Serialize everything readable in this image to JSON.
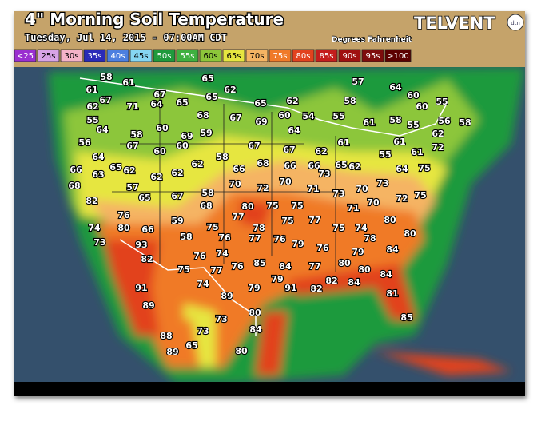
{
  "header": {
    "title": "4\" Morning Soil Temperature",
    "subtitle": "Tuesday, Jul 14, 2015 - 07:00AM CDT",
    "units": "Degrees Fahrenheit",
    "brand": "TELVENT",
    "badge": "dtn"
  },
  "legend": [
    {
      "label": "<25",
      "color": "#9a2fd0"
    },
    {
      "label": "25s",
      "color": "#d8a4e6"
    },
    {
      "label": "30s",
      "color": "#f4b2c8"
    },
    {
      "label": "35s",
      "color": "#2a2ab8"
    },
    {
      "label": "40s",
      "color": "#4c7fe0"
    },
    {
      "label": "45s",
      "color": "#86d6f2"
    },
    {
      "label": "50s",
      "color": "#1f9a3c"
    },
    {
      "label": "55s",
      "color": "#3fb040"
    },
    {
      "label": "60s",
      "color": "#8cc63a"
    },
    {
      "label": "65s",
      "color": "#e6e640"
    },
    {
      "label": "70s",
      "color": "#f5b463"
    },
    {
      "label": "75s",
      "color": "#f07a28"
    },
    {
      "label": "80s",
      "color": "#e2421e"
    },
    {
      "label": "85s",
      "color": "#c41d1d"
    },
    {
      "label": "90s",
      "color": "#a01010"
    },
    {
      "label": "95s",
      "color": "#7e0c0c"
    },
    {
      "label": ">100",
      "color": "#5c0000"
    }
  ],
  "stations": [
    58,
    61,
    65,
    61,
    67,
    62,
    65,
    57,
    64,
    60,
    67,
    62,
    71,
    64,
    65,
    65,
    62,
    58,
    60,
    55,
    55,
    64,
    60,
    68,
    67,
    69,
    60,
    54,
    55,
    58,
    55,
    56,
    58,
    59,
    58,
    69,
    64,
    61,
    62,
    56,
    67,
    60,
    60,
    67,
    67,
    61,
    61,
    72,
    64,
    58,
    62,
    55,
    61,
    66,
    63,
    65,
    62,
    62,
    62,
    62,
    66,
    68,
    66,
    66,
    73,
    65,
    62,
    64,
    75,
    68,
    57,
    70,
    72,
    70,
    71,
    73,
    70,
    73,
    72,
    75,
    82,
    65,
    67,
    58,
    68,
    80,
    75,
    75,
    71,
    70,
    76,
    59,
    77,
    75,
    77,
    80,
    74,
    80,
    66,
    75,
    78,
    75,
    74,
    73,
    93,
    58,
    76,
    77,
    76,
    79,
    78,
    80,
    82,
    76,
    74,
    76,
    79,
    84,
    77,
    76,
    85,
    84,
    77,
    80,
    80,
    75,
    74,
    79,
    79,
    91,
    82,
    82,
    84,
    84,
    91,
    89,
    81,
    89,
    80,
    85,
    73,
    84,
    73,
    88,
    89,
    65,
    80
  ]
}
